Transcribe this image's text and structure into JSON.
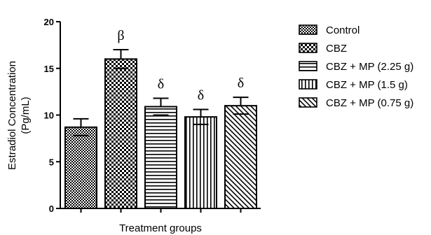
{
  "chart_data": {
    "type": "bar",
    "title": "",
    "ylabel_line1": "Estradiol Concentration",
    "ylabel_line2": "(Pg/mL)",
    "xlabel": "Treatment groups",
    "ylim": [
      0,
      20
    ],
    "yticks": [
      "0",
      "5",
      "10",
      "15",
      "20"
    ],
    "legend_placement": "right",
    "grid": false,
    "series": [
      {
        "name": "Control",
        "value": 8.7,
        "error": 0.9,
        "annotation": "",
        "pattern": "checker-fine"
      },
      {
        "name": "CBZ",
        "value": 16.0,
        "error": 1.0,
        "annotation": "β",
        "pattern": "checker-coarse"
      },
      {
        "name": "CBZ + MP (2.25 g)",
        "value": 10.9,
        "error": 0.9,
        "annotation": "δ",
        "pattern": "horizontal-lines"
      },
      {
        "name": "CBZ + MP (1.5 g)",
        "value": 9.8,
        "error": 0.8,
        "annotation": "δ",
        "pattern": "vertical-lines"
      },
      {
        "name": "CBZ + MP (0.75 g)",
        "value": 11.0,
        "error": 0.9,
        "annotation": "δ",
        "pattern": "diagonal-lines"
      }
    ]
  }
}
